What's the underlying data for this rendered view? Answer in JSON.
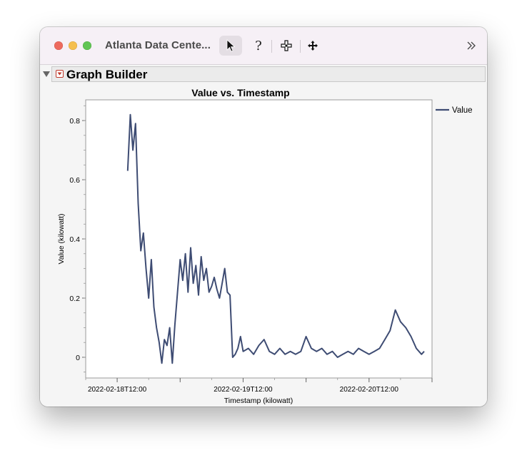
{
  "window": {
    "title": "Atlanta Data Cente..."
  },
  "toolbar": {
    "help_glyph": "?",
    "items": [
      "arrow-tool",
      "help-tool",
      "selection-tool",
      "move-tool",
      "more-tools"
    ]
  },
  "graph_builder": {
    "title": "Graph Builder"
  },
  "colors": {
    "series": "#3e4c73",
    "red_menu": "#c0392b"
  },
  "chart_data": {
    "type": "line",
    "title": "Value vs. Timestamp",
    "xlabel": "Timestamp (kilowatt)",
    "ylabel": "Value (kilowatt)",
    "x_ticks": [
      "2022-02-18T12:00",
      "2022-02-19T12:00",
      "2022-02-20T12:00"
    ],
    "y_ticks": [
      0,
      0.2,
      0.4,
      0.6,
      0.8
    ],
    "ylim": [
      -0.07,
      0.87
    ],
    "xlim": [
      "2022-02-18T06:00",
      "2022-02-21T00:00"
    ],
    "legend": {
      "position": "right",
      "entries": [
        "Value"
      ]
    },
    "series": [
      {
        "name": "Value",
        "x": [
          "2022-02-18T14:00",
          "2022-02-18T14:30",
          "2022-02-18T15:00",
          "2022-02-18T15:30",
          "2022-02-18T16:00",
          "2022-02-18T16:30",
          "2022-02-18T17:00",
          "2022-02-18T17:30",
          "2022-02-18T18:00",
          "2022-02-18T18:30",
          "2022-02-18T19:00",
          "2022-02-18T19:30",
          "2022-02-18T20:00",
          "2022-02-18T20:30",
          "2022-02-18T21:00",
          "2022-02-18T21:30",
          "2022-02-18T22:00",
          "2022-02-18T22:30",
          "2022-02-18T23:00",
          "2022-02-18T23:30",
          "2022-02-19T00:00",
          "2022-02-19T00:30",
          "2022-02-19T01:00",
          "2022-02-19T01:30",
          "2022-02-19T02:00",
          "2022-02-19T02:30",
          "2022-02-19T03:00",
          "2022-02-19T03:30",
          "2022-02-19T04:00",
          "2022-02-19T04:30",
          "2022-02-19T05:00",
          "2022-02-19T05:30",
          "2022-02-19T06:00",
          "2022-02-19T06:30",
          "2022-02-19T07:00",
          "2022-02-19T07:30",
          "2022-02-19T08:00",
          "2022-02-19T08:30",
          "2022-02-19T09:00",
          "2022-02-19T09:30",
          "2022-02-19T10:00",
          "2022-02-19T10:30",
          "2022-02-19T11:00",
          "2022-02-19T11:30",
          "2022-02-19T12:00",
          "2022-02-19T13:00",
          "2022-02-19T14:00",
          "2022-02-19T15:00",
          "2022-02-19T16:00",
          "2022-02-19T17:00",
          "2022-02-19T18:00",
          "2022-02-19T19:00",
          "2022-02-19T20:00",
          "2022-02-19T21:00",
          "2022-02-19T22:00",
          "2022-02-19T23:00",
          "2022-02-20T00:00",
          "2022-02-20T01:00",
          "2022-02-20T02:00",
          "2022-02-20T03:00",
          "2022-02-20T04:00",
          "2022-02-20T05:00",
          "2022-02-20T06:00",
          "2022-02-20T07:00",
          "2022-02-20T08:00",
          "2022-02-20T09:00",
          "2022-02-20T10:00",
          "2022-02-20T11:00",
          "2022-02-20T12:00",
          "2022-02-20T13:00",
          "2022-02-20T14:00",
          "2022-02-20T15:00",
          "2022-02-20T16:00",
          "2022-02-20T17:00",
          "2022-02-20T18:00",
          "2022-02-20T19:00",
          "2022-02-20T20:00",
          "2022-02-20T21:00",
          "2022-02-20T22:00",
          "2022-02-20T22:30"
        ],
        "values": [
          0.63,
          0.82,
          0.7,
          0.79,
          0.52,
          0.36,
          0.42,
          0.3,
          0.2,
          0.33,
          0.17,
          0.1,
          0.05,
          -0.02,
          0.06,
          0.04,
          0.1,
          -0.02,
          0.11,
          0.22,
          0.33,
          0.26,
          0.35,
          0.22,
          0.37,
          0.25,
          0.31,
          0.21,
          0.34,
          0.26,
          0.3,
          0.22,
          0.24,
          0.27,
          0.23,
          0.2,
          0.25,
          0.3,
          0.22,
          0.21,
          0.0,
          0.01,
          0.03,
          0.07,
          0.02,
          0.03,
          0.01,
          0.04,
          0.06,
          0.02,
          0.01,
          0.03,
          0.01,
          0.02,
          0.01,
          0.02,
          0.07,
          0.03,
          0.02,
          0.03,
          0.01,
          0.02,
          0.0,
          0.01,
          0.02,
          0.01,
          0.03,
          0.02,
          0.01,
          0.02,
          0.03,
          0.06,
          0.09,
          0.16,
          0.12,
          0.1,
          0.07,
          0.03,
          0.01,
          0.02
        ]
      }
    ]
  }
}
